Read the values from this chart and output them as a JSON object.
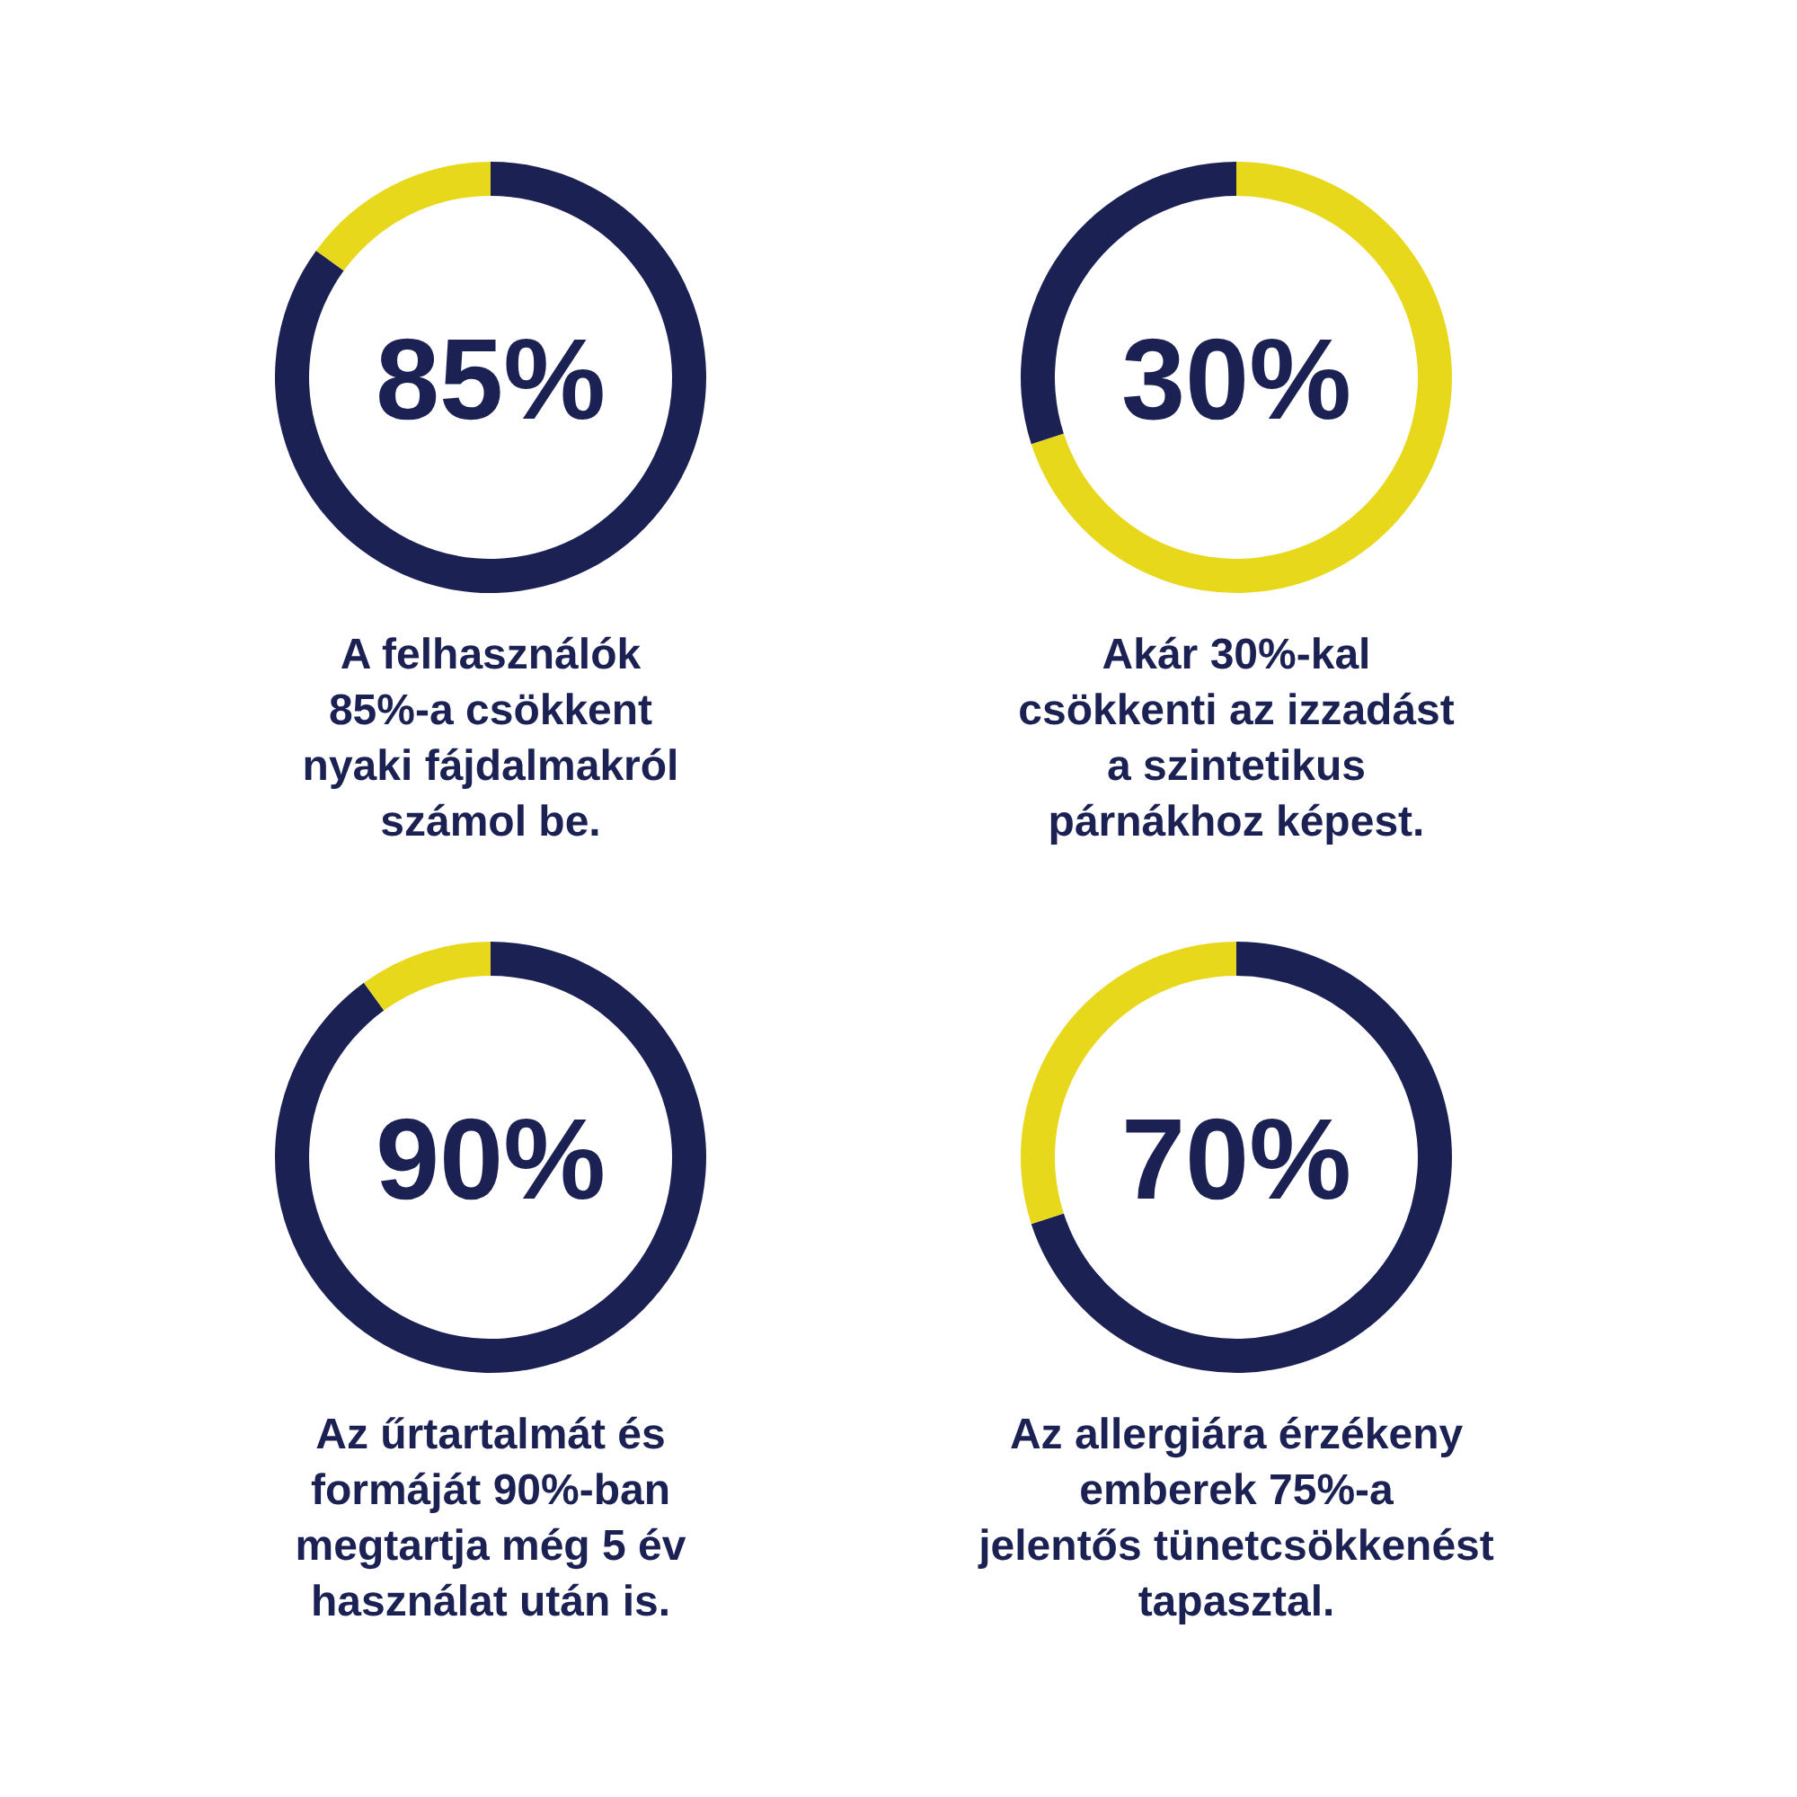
{
  "chart_data": [
    {
      "type": "donut",
      "title": "85%",
      "categories": [
        null,
        null
      ],
      "values": [
        85,
        15
      ],
      "colors": [
        "#1b2152",
        "#e8d81c"
      ],
      "annotations": [
        "A felhasználók\n85%-a csökkent\nnyaki fájdalmakról\nszámol be."
      ]
    },
    {
      "type": "donut",
      "title": "30%",
      "categories": [
        null,
        null
      ],
      "values": [
        70,
        30
      ],
      "colors": [
        "#e8d81c",
        "#1b2152"
      ],
      "annotations": [
        "Akár 30%-kal\ncsökkenti az izzadást\na szintetikus\npárnákhoz képest."
      ]
    },
    {
      "type": "donut",
      "title": "90%",
      "categories": [
        null,
        null
      ],
      "values": [
        90,
        10
      ],
      "colors": [
        "#1b2152",
        "#e8d81c"
      ],
      "annotations": [
        "Az űrtartalmát és\nformáját 90%-ban\nmegtartja még 5 év\nhasználat után is."
      ]
    },
    {
      "type": "donut",
      "title": "70%",
      "categories": [
        null,
        null
      ],
      "values": [
        70,
        30
      ],
      "colors": [
        "#1b2152",
        "#e8d81c"
      ],
      "annotations": [
        "Az allergiára érzékeny\nemberek 75%-a\njelentős tünetcsökkenést\ntapasztal."
      ]
    }
  ]
}
